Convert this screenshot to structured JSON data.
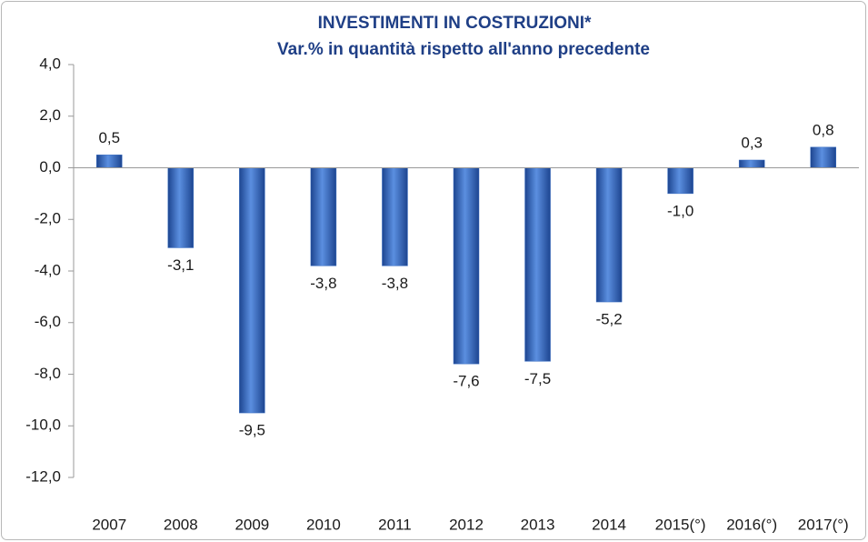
{
  "chart_data": {
    "type": "bar",
    "title": "INVESTIMENTI IN COSTRUZIONI*",
    "subtitle": "Var.% in quantità rispetto all'anno precedente",
    "categories": [
      "2007",
      "2008",
      "2009",
      "2010",
      "2011",
      "2012",
      "2013",
      "2014",
      "2015(°)",
      "2016(°)",
      "2017(°)"
    ],
    "values": [
      0.5,
      -3.1,
      -9.5,
      -3.8,
      -3.8,
      -7.6,
      -7.5,
      -5.2,
      -1.0,
      0.3,
      0.8
    ],
    "value_labels": [
      "0,5",
      "-3,1",
      "-9,5",
      "-3,8",
      "-3,8",
      "-7,6",
      "-7,5",
      "-5,2",
      "-1,0",
      "0,3",
      "0,8"
    ],
    "color": "#3a6fc4",
    "ylim": [
      -12,
      4
    ],
    "yticks": [
      {
        "value": -12,
        "label": "-12,0"
      },
      {
        "value": -10,
        "label": "-10,0"
      },
      {
        "value": -8,
        "label": "-8,0"
      },
      {
        "value": -6,
        "label": "-6,0"
      },
      {
        "value": -4,
        "label": "-4,0"
      },
      {
        "value": -2,
        "label": "-2,0"
      },
      {
        "value": 0,
        "label": "0,0"
      },
      {
        "value": 2,
        "label": "2,0"
      },
      {
        "value": 4,
        "label": "4,0"
      }
    ],
    "grid": false
  }
}
